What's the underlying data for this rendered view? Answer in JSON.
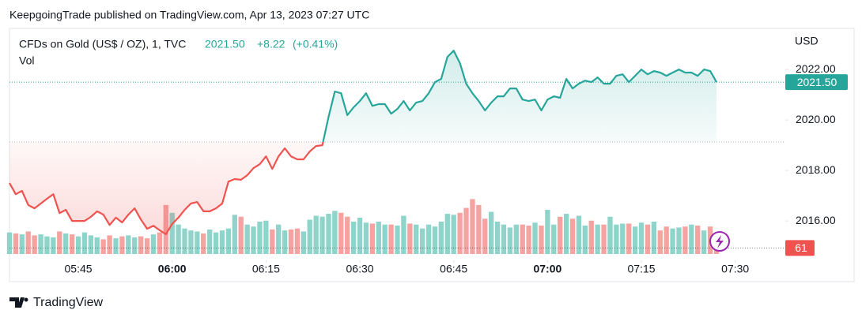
{
  "header": {
    "published": "KeepgoingTrade published on TradingView.com, Apr 13, 2023 07:27 UTC",
    "price": "2021.50",
    "change": "+8.22",
    "change_pct": "(+0.41%)"
  },
  "footer": {
    "brand": "TradingView"
  },
  "chart_data": {
    "type": "line",
    "y_unit": "USD",
    "x": [
      "05:34",
      "05:35",
      "05:36",
      "05:37",
      "05:38",
      "05:39",
      "05:40",
      "05:41",
      "05:42",
      "05:43",
      "05:44",
      "05:45",
      "05:46",
      "05:47",
      "05:48",
      "05:49",
      "05:50",
      "05:51",
      "05:52",
      "05:53",
      "05:54",
      "05:55",
      "05:56",
      "05:57",
      "05:58",
      "05:59",
      "06:00",
      "06:01",
      "06:02",
      "06:03",
      "06:04",
      "06:05",
      "06:06",
      "06:07",
      "06:08",
      "06:09",
      "06:10",
      "06:11",
      "06:12",
      "06:13",
      "06:14",
      "06:15",
      "06:16",
      "06:17",
      "06:18",
      "06:19",
      "06:20",
      "06:21",
      "06:22",
      "06:23",
      "06:24",
      "06:25",
      "06:26",
      "06:27",
      "06:28",
      "06:29",
      "06:30",
      "06:31",
      "06:32",
      "06:33",
      "06:34",
      "06:35",
      "06:36",
      "06:37",
      "06:38",
      "06:39",
      "06:40",
      "06:41",
      "06:42",
      "06:43",
      "06:44",
      "06:45",
      "06:46",
      "06:47",
      "06:48",
      "06:49",
      "06:50",
      "06:51",
      "06:52",
      "06:53",
      "06:54",
      "06:55",
      "06:56",
      "06:57",
      "06:58",
      "06:59",
      "07:00",
      "07:01",
      "07:02",
      "07:03",
      "07:04",
      "07:05",
      "07:06",
      "07:07",
      "07:08",
      "07:09",
      "07:10",
      "07:11",
      "07:12",
      "07:13",
      "07:14",
      "07:15",
      "07:16",
      "07:17",
      "07:18",
      "07:19",
      "07:20",
      "07:21",
      "07:22",
      "07:23",
      "07:24",
      "07:25",
      "07:26",
      "07:27"
    ],
    "series": [
      {
        "name": "CFDs on Gold (US$ / OZ), 1, TVC",
        "color_up": "#26a69a",
        "color_down": "#ef5350",
        "values": [
          2017.5,
          2017.06,
          2017.19,
          2016.63,
          2016.5,
          2016.69,
          2016.88,
          2017.06,
          2016.31,
          2016.44,
          2016.0,
          2016.0,
          2016.0,
          2016.16,
          2016.38,
          2016.25,
          2015.84,
          2016.13,
          2015.94,
          2016.25,
          2016.5,
          2016.06,
          2015.69,
          2015.81,
          2015.63,
          2015.47,
          2015.88,
          2016.13,
          2016.44,
          2016.69,
          2016.75,
          2016.38,
          2016.38,
          2016.5,
          2016.69,
          2017.56,
          2017.66,
          2017.63,
          2017.81,
          2018.09,
          2018.25,
          2018.56,
          2018.06,
          2018.56,
          2018.88,
          2018.56,
          2018.44,
          2018.44,
          2018.75,
          2018.97,
          2019.0,
          2020.13,
          2021.13,
          2021.06,
          2020.19,
          2020.5,
          2020.75,
          2021.06,
          2020.56,
          2020.63,
          2020.63,
          2020.25,
          2020.44,
          2020.75,
          2020.38,
          2020.69,
          2020.75,
          2021.06,
          2021.5,
          2021.63,
          2022.5,
          2022.75,
          2022.25,
          2021.44,
          2021.06,
          2020.75,
          2020.38,
          2020.69,
          2020.94,
          2020.94,
          2021.25,
          2021.25,
          2020.81,
          2020.75,
          2020.81,
          2020.38,
          2020.81,
          2020.94,
          2020.88,
          2021.63,
          2021.25,
          2021.44,
          2021.56,
          2021.5,
          2021.69,
          2021.44,
          2021.44,
          2021.75,
          2021.81,
          2021.5,
          2021.75,
          2022.0,
          2021.81,
          2021.94,
          2021.88,
          2021.75,
          2021.88,
          2022.0,
          2021.88,
          2021.88,
          2021.75,
          2022.0,
          2021.94,
          2021.5
        ]
      },
      {
        "name": "Vol",
        "type": "bar",
        "axis": "y2",
        "color_up": "#8fd4cb",
        "color_down": "#f5a3a1",
        "values": [
          220,
          210,
          200,
          230,
          190,
          200,
          180,
          170,
          230,
          210,
          200,
          180,
          220,
          190,
          170,
          150,
          190,
          160,
          180,
          190,
          170,
          180,
          160,
          200,
          220,
          500,
          420,
          300,
          260,
          240,
          230,
          210,
          250,
          220,
          240,
          260,
          400,
          380,
          300,
          280,
          330,
          340,
          250,
          300,
          240,
          250,
          260,
          230,
          350,
          390,
          380,
          410,
          440,
          420,
          380,
          330,
          370,
          320,
          310,
          330,
          300,
          300,
          290,
          390,
          310,
          300,
          260,
          300,
          280,
          330,
          410,
          400,
          420,
          470,
          560,
          500,
          360,
          430,
          330,
          300,
          270,
          300,
          300,
          290,
          320,
          290,
          450,
          300,
          380,
          410,
          360,
          390,
          290,
          340,
          300,
          300,
          380,
          300,
          310,
          310,
          280,
          320,
          300,
          330,
          240,
          280,
          260,
          270,
          280,
          300,
          290,
          240,
          280,
          61
        ]
      }
    ],
    "baseline": 2019.13,
    "xlim": [
      "05:34",
      "07:38"
    ],
    "xticks": [
      "05:45",
      "06:00",
      "06:15",
      "06:30",
      "06:45",
      "07:00",
      "07:15",
      "07:30"
    ],
    "ylim": [
      2014.69,
      2023.63
    ],
    "yticks": [
      {
        "value": 2016,
        "label": "2016.00"
      },
      {
        "value": 2018,
        "label": "2018.00"
      },
      {
        "value": 2020,
        "label": "2020.00"
      },
      {
        "value": 2022,
        "label": "2022.00"
      }
    ],
    "y2lim": [
      0,
      2300
    ]
  }
}
